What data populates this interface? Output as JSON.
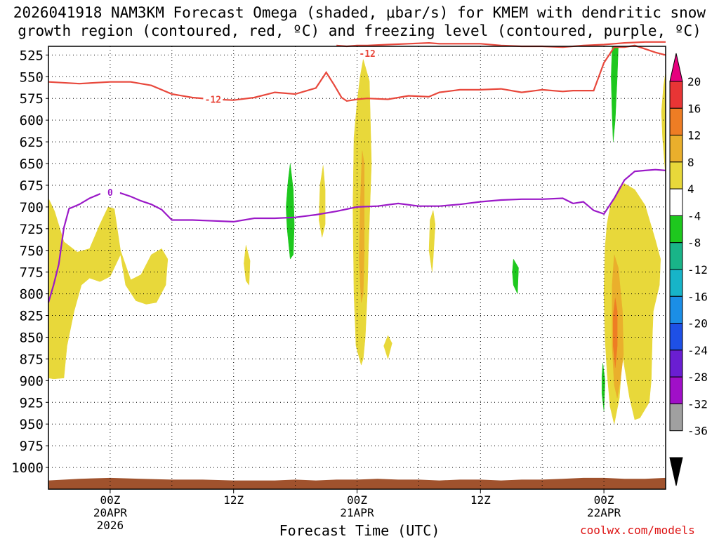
{
  "chart_data": {
    "type": "heatmap",
    "title_line1": "2026041918 NAM3KM Forecast Omega (shaded, μbar/s) for KMEM with dendritic snow",
    "title_line2": "growth region (contoured, red, ºC) and freezing level (contoured, purple, ºC)",
    "xlabel": "Forecast Time (UTC)",
    "credit": "coolwx.com/models",
    "x_unit": "hours since 2026041918",
    "xlim": [
      0,
      60
    ],
    "ylim_hPa": [
      1025,
      515
    ],
    "y_ticks": [
      525,
      550,
      575,
      600,
      625,
      650,
      675,
      700,
      725,
      750,
      775,
      800,
      825,
      850,
      875,
      900,
      925,
      950,
      975,
      1000
    ],
    "x_ticks": [
      {
        "hour": 6,
        "lines": [
          "00Z",
          "20APR",
          "2026"
        ]
      },
      {
        "hour": 18,
        "lines": [
          "12Z"
        ]
      },
      {
        "hour": 30,
        "lines": [
          "00Z",
          "21APR"
        ]
      },
      {
        "hour": 42,
        "lines": [
          "12Z"
        ]
      },
      {
        "hour": 54,
        "lines": [
          "00Z",
          "22APR"
        ]
      }
    ],
    "colorbar": {
      "labels": [
        "20",
        "16",
        "12",
        "8",
        "4",
        "-4",
        "-8",
        "-12",
        "-16",
        "-20",
        "-24",
        "-28",
        "-32",
        "-36"
      ],
      "colors": [
        "#e6007e",
        "#e83535",
        "#ee7d24",
        "#eaaf2c",
        "#e8d83a",
        "#ffffff",
        "#1ec81e",
        "#19b488",
        "#17b4c8",
        "#1b8ee6",
        "#1e50e6",
        "#6a1ed2",
        "#a00fc8",
        "#a0a0a0",
        "#000000"
      ]
    },
    "contours": [
      {
        "value": -12,
        "label": "-12",
        "color": "#e8483c",
        "x": [
          0,
          3,
          6,
          8,
          10,
          12,
          14,
          16,
          18,
          20,
          22,
          24,
          26,
          27,
          27.8,
          28.5,
          29,
          30,
          31,
          33,
          35,
          37,
          38,
          40,
          42,
          44,
          46,
          48,
          50,
          51,
          53,
          54,
          55,
          56,
          57,
          58,
          59,
          60
        ],
        "y": [
          556,
          558,
          556,
          556,
          560,
          570,
          574,
          576,
          577,
          574,
          568,
          570,
          563,
          545,
          560,
          574,
          578,
          576,
          575,
          576,
          572,
          573,
          568,
          565,
          565,
          564,
          568,
          565,
          567,
          566,
          566,
          534,
          516,
          516,
          514,
          518,
          522,
          525
        ],
        "label_at": {
          "x": 16,
          "y": 576
        }
      },
      {
        "value": -12,
        "label": "-12",
        "color": "#e8483c",
        "x": [
          28,
          29,
          30,
          31,
          33,
          35,
          37,
          38,
          40,
          42,
          44,
          46,
          48,
          50,
          52,
          54,
          55,
          56,
          58,
          60
        ],
        "y": [
          514,
          515,
          514,
          514,
          513,
          512,
          511,
          512,
          512,
          512,
          514,
          515,
          515,
          516,
          514,
          513,
          512,
          511,
          510,
          510
        ],
        "label_at": {
          "x": 31,
          "y": 523
        }
      },
      {
        "value": 0,
        "label": "0",
        "color": "#9b19c8",
        "x": [
          0,
          0.5,
          1,
          1.5,
          2,
          3,
          4,
          5,
          6,
          7,
          8,
          9,
          10,
          11,
          12,
          13,
          14,
          16,
          18,
          20,
          22,
          24,
          26,
          28,
          30,
          32,
          34,
          36,
          38,
          40,
          42,
          44,
          46,
          48,
          50,
          51,
          52,
          53,
          54,
          55,
          56,
          57,
          58,
          59,
          60
        ],
        "y": [
          810,
          790,
          766,
          724,
          702,
          697,
          690,
          685,
          683,
          684,
          688,
          693,
          697,
          703,
          715,
          715,
          715,
          716,
          717,
          713,
          713,
          712,
          709,
          705,
          700,
          699,
          696,
          699,
          699,
          697,
          694,
          692,
          691,
          691,
          690,
          696,
          694,
          704,
          708,
          690,
          669,
          659,
          658,
          657,
          658
        ],
        "label_at": {
          "x": 6,
          "y": 683
        }
      }
    ],
    "shaded": [
      {
        "value": 6,
        "color": "#e8d83a",
        "poly": [
          [
            0,
            690
          ],
          [
            0.6,
            705
          ],
          [
            1.5,
            740
          ],
          [
            2.8,
            752
          ],
          [
            4,
            748
          ],
          [
            5,
            720
          ],
          [
            5.8,
            700
          ],
          [
            6.4,
            702
          ],
          [
            7,
            750
          ],
          [
            8,
            784
          ],
          [
            9,
            778
          ],
          [
            10,
            755
          ],
          [
            11,
            748
          ],
          [
            11.6,
            760
          ],
          [
            11.4,
            790
          ],
          [
            10.5,
            810
          ],
          [
            9.5,
            812
          ],
          [
            8.5,
            808
          ],
          [
            7.5,
            790
          ],
          [
            7,
            755
          ],
          [
            6,
            780
          ],
          [
            5,
            786
          ],
          [
            4,
            782
          ],
          [
            3.2,
            790
          ],
          [
            2.5,
            820
          ],
          [
            1.8,
            860
          ],
          [
            1.5,
            897
          ],
          [
            0.5,
            898
          ],
          [
            0,
            897
          ]
        ]
      },
      {
        "value": 5,
        "color": "#e8d83a",
        "poly": [
          [
            19.2,
            744
          ],
          [
            19.6,
            762
          ],
          [
            19.5,
            790
          ],
          [
            19.2,
            785
          ],
          [
            19.0,
            765
          ]
        ]
      },
      {
        "value": 5,
        "color": "#e8d83a",
        "poly": [
          [
            26.7,
            652
          ],
          [
            26.9,
            680
          ],
          [
            26.9,
            720
          ],
          [
            26.6,
            735
          ],
          [
            26.3,
            715
          ],
          [
            26.4,
            675
          ]
        ]
      },
      {
        "value": 6,
        "color": "#e8d83a",
        "poly": [
          [
            29.7,
            620
          ],
          [
            30,
            580
          ],
          [
            30.3,
            550
          ],
          [
            30.6,
            530
          ],
          [
            31.2,
            555
          ],
          [
            31.4,
            650
          ],
          [
            31.1,
            750
          ],
          [
            31,
            800
          ],
          [
            30.8,
            850
          ],
          [
            30.6,
            875
          ],
          [
            30.4,
            882
          ],
          [
            29.9,
            860
          ],
          [
            29.7,
            800
          ],
          [
            29.6,
            700
          ]
        ]
      },
      {
        "value": 10,
        "color": "#eaaf2c",
        "poly": [
          [
            30.5,
            635
          ],
          [
            30.7,
            650
          ],
          [
            30.7,
            750
          ],
          [
            30.6,
            800
          ],
          [
            30.4,
            810
          ],
          [
            30.2,
            760
          ],
          [
            30.3,
            700
          ]
        ]
      },
      {
        "value": 5,
        "color": "#e8d83a",
        "poly": [
          [
            33,
            848
          ],
          [
            33.4,
            857
          ],
          [
            33,
            875
          ],
          [
            32.6,
            860
          ]
        ]
      },
      {
        "value": 5,
        "color": "#e8d83a",
        "poly": [
          [
            37.4,
            704
          ],
          [
            37.6,
            720
          ],
          [
            37.4,
            760
          ],
          [
            37.3,
            775
          ],
          [
            37.0,
            750
          ],
          [
            37.1,
            715
          ]
        ]
      },
      {
        "value": 6,
        "color": "#e8d83a",
        "poly": [
          [
            54.6,
            700
          ],
          [
            55.5,
            677
          ],
          [
            56,
            673
          ],
          [
            57,
            680
          ],
          [
            58,
            698
          ],
          [
            59,
            738
          ],
          [
            59.5,
            760
          ],
          [
            59.4,
            790
          ],
          [
            58.8,
            820
          ],
          [
            58.7,
            850
          ],
          [
            58.6,
            900
          ],
          [
            58.4,
            925
          ],
          [
            57.5,
            943
          ],
          [
            57,
            945
          ],
          [
            56.5,
            920
          ],
          [
            55.8,
            870
          ],
          [
            55.5,
            920
          ],
          [
            55,
            950
          ],
          [
            54.6,
            930
          ],
          [
            54.3,
            890
          ],
          [
            54.1,
            850
          ],
          [
            54.0,
            800
          ],
          [
            54.1,
            748
          ],
          [
            54.3,
            720
          ]
        ]
      },
      {
        "value": 10,
        "color": "#eaaf2c",
        "poly": [
          [
            55,
            755
          ],
          [
            55.4,
            770
          ],
          [
            55.8,
            820
          ],
          [
            55.9,
            870
          ],
          [
            55.6,
            900
          ],
          [
            55.3,
            920
          ],
          [
            55.0,
            905
          ],
          [
            54.8,
            860
          ],
          [
            54.8,
            790
          ]
        ]
      },
      {
        "value": 13,
        "color": "#ee7d24",
        "poly": [
          [
            55.1,
            805
          ],
          [
            55.3,
            820
          ],
          [
            55.3,
            860
          ],
          [
            55.1,
            885
          ],
          [
            54.9,
            860
          ],
          [
            54.9,
            825
          ]
        ]
      },
      {
        "value": 6,
        "color": "#e8d83a",
        "poly": [
          [
            59.8,
            560
          ],
          [
            60,
            545
          ],
          [
            60,
            665
          ],
          [
            59.7,
            620
          ],
          [
            59.6,
            590
          ]
        ]
      },
      {
        "value": -6,
        "color": "#1ec81e",
        "poly": [
          [
            23.5,
            650
          ],
          [
            23.8,
            680
          ],
          [
            23.9,
            720
          ],
          [
            23.8,
            755
          ],
          [
            23.5,
            760
          ],
          [
            23.2,
            725
          ],
          [
            23.1,
            700
          ],
          [
            23.3,
            670
          ]
        ]
      },
      {
        "value": -6,
        "color": "#1ec81e",
        "poly": [
          [
            54.8,
            515
          ],
          [
            55.4,
            515
          ],
          [
            55.3,
            550
          ],
          [
            55.1,
            600
          ],
          [
            54.9,
            625
          ],
          [
            54.8,
            595
          ],
          [
            54.7,
            550
          ]
        ]
      },
      {
        "value": -6,
        "color": "#1ec81e",
        "poly": [
          [
            45.2,
            760
          ],
          [
            45.7,
            770
          ],
          [
            45.6,
            800
          ],
          [
            45.2,
            790
          ],
          [
            45.1,
            775
          ]
        ]
      },
      {
        "value": -6,
        "color": "#1ec81e",
        "poly": [
          [
            53.9,
            880
          ],
          [
            54.1,
            900
          ],
          [
            54.0,
            935
          ],
          [
            53.8,
            915
          ],
          [
            53.8,
            895
          ]
        ]
      }
    ],
    "ground": {
      "color": "#a0522d",
      "x": [
        0,
        3,
        6,
        9,
        12,
        15,
        18,
        20,
        22,
        24,
        26,
        28,
        30,
        32,
        34,
        36,
        38,
        40,
        42,
        44,
        46,
        48,
        50,
        52,
        54,
        56,
        58,
        60
      ],
      "y": [
        1015,
        1013,
        1012,
        1013,
        1014,
        1014,
        1015,
        1015,
        1015,
        1014,
        1015,
        1014,
        1014,
        1013,
        1014,
        1014,
        1015,
        1014,
        1014,
        1015,
        1014,
        1014,
        1013,
        1012,
        1012,
        1013,
        1013,
        1012
      ]
    }
  }
}
